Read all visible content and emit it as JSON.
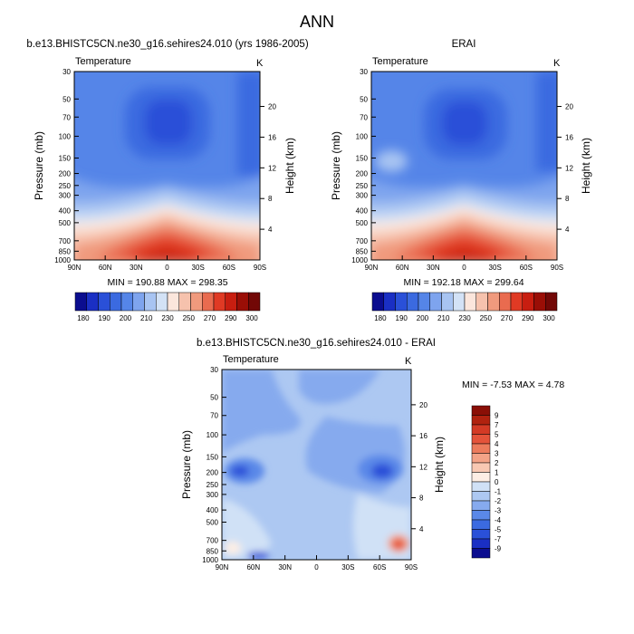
{
  "page": {
    "title": "ANN"
  },
  "colors": {
    "abs_scale": [
      "#0b0d8f",
      "#1a2fc4",
      "#2a50d8",
      "#3b6ae0",
      "#5585e8",
      "#7ea4ee",
      "#a8c4f2",
      "#d3e2f6",
      "#fbe6dc",
      "#f6c2ad",
      "#f09a7d",
      "#e96b4f",
      "#e03a24",
      "#c81e10",
      "#9a0e06",
      "#720806"
    ],
    "diff_scale": [
      "#0b0d8f",
      "#1a2fc4",
      "#2a50d8",
      "#3b6ae0",
      "#5a88e8",
      "#86aaee",
      "#adc8f2",
      "#d0e1f6",
      "#fdeee4",
      "#f8c8b2",
      "#f3a387",
      "#ec7b5c",
      "#e4533a",
      "#d33a25",
      "#b0220f",
      "#8a0f06"
    ]
  },
  "chart_data": [
    {
      "id": "model",
      "type": "heatmap",
      "title": "b.e13.BHISTC5CN.ne30_g16.sehires24.010 (yrs 1986-2005)",
      "left_label": "Temperature",
      "units": "K",
      "ylabel": "Pressure (mb)",
      "y2label": "Height (km)",
      "x_ticks": [
        "90N",
        "60N",
        "30N",
        "0",
        "30S",
        "60S",
        "90S"
      ],
      "y_ticks": [
        "30",
        "50",
        "70",
        "100",
        "150",
        "200",
        "250",
        "300",
        "400",
        "500",
        "700",
        "850",
        "1000"
      ],
      "y2_ticks": [
        "20",
        "16",
        "12",
        "8",
        "4"
      ],
      "minmax": "MIN = 190.88   MAX = 298.35",
      "colorbar_labels": [
        "180",
        "190",
        "200",
        "210",
        "230",
        "250",
        "270",
        "290",
        "300"
      ]
    },
    {
      "id": "obs",
      "type": "heatmap",
      "title": "ERAI",
      "left_label": "Temperature",
      "units": "K",
      "ylabel": "Pressure (mb)",
      "y2label": "Height (km)",
      "x_ticks": [
        "90N",
        "60N",
        "30N",
        "0",
        "30S",
        "60S",
        "90S"
      ],
      "y_ticks": [
        "30",
        "50",
        "70",
        "100",
        "150",
        "200",
        "250",
        "300",
        "400",
        "500",
        "700",
        "850",
        "1000"
      ],
      "y2_ticks": [
        "20",
        "16",
        "12",
        "8",
        "4"
      ],
      "minmax": "MIN = 192.18   MAX = 299.64",
      "colorbar_labels": [
        "180",
        "190",
        "200",
        "210",
        "230",
        "250",
        "270",
        "290",
        "300"
      ]
    },
    {
      "id": "diff",
      "type": "heatmap",
      "title": "b.e13.BHISTC5CN.ne30_g16.sehires24.010 - ERAI",
      "left_label": "Temperature",
      "units": "K",
      "ylabel": "Pressure (mb)",
      "y2label": "Height (km)",
      "x_ticks": [
        "90N",
        "60N",
        "30N",
        "0",
        "30S",
        "60S",
        "90S"
      ],
      "y_ticks": [
        "30",
        "50",
        "70",
        "100",
        "150",
        "200",
        "250",
        "300",
        "400",
        "500",
        "700",
        "850",
        "1000"
      ],
      "y2_ticks": [
        "20",
        "16",
        "12",
        "8",
        "4"
      ],
      "minmax": "MIN = -7.53  MAX =  4.78",
      "colorbar_labels": [
        "9",
        "7",
        "5",
        "4",
        "3",
        "2",
        "1",
        "0",
        "-1",
        "-2",
        "-3",
        "-4",
        "-5",
        "-7",
        "-9"
      ]
    }
  ]
}
